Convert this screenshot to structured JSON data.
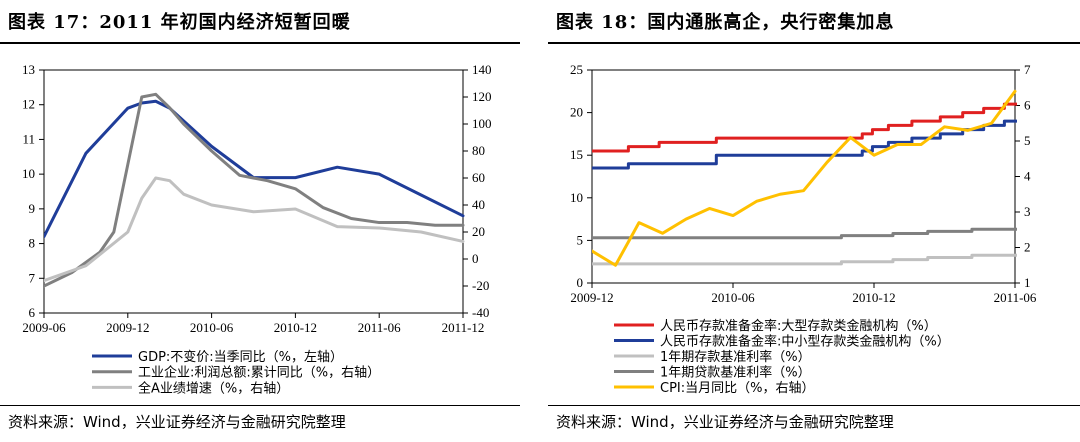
{
  "left": {
    "title": "图表 17：2011 年初国内经济短暂回暖",
    "source": "资料来源：Wind，兴业证券经济与金融研究院整理",
    "chart_data": {
      "type": "line",
      "x_ticks": [
        "2009-06",
        "2009-12",
        "2010-06",
        "2010-12",
        "2011-06",
        "2011-12"
      ],
      "x_range": [
        "2009-06",
        "2011-12"
      ],
      "y_left_range": [
        6,
        13
      ],
      "y_left_ticks": [
        "6",
        "7",
        "8",
        "9",
        "10",
        "11",
        "12",
        "13"
      ],
      "y_right_range": [
        -40,
        140
      ],
      "y_right_ticks": [
        "-40",
        "-20",
        "0",
        "20",
        "40",
        "60",
        "80",
        "100",
        "120",
        "140"
      ],
      "grid": false,
      "legend_position": "bottom",
      "series": [
        {
          "name": "GDP:不变价:当季同比（%，左轴）",
          "axis": "left",
          "color": "#1f3d99",
          "x": [
            "2009-06",
            "2009-09",
            "2009-12",
            "2010-01",
            "2010-02",
            "2010-03",
            "2010-06",
            "2010-09",
            "2010-12",
            "2011-03",
            "2011-06",
            "2011-09",
            "2011-12"
          ],
          "y": [
            8.2,
            10.6,
            11.9,
            12.05,
            12.1,
            11.9,
            10.8,
            9.9,
            9.9,
            10.2,
            10.0,
            9.4,
            8.8
          ]
        },
        {
          "name": "工业企业:利润总额:累计同比（%，右轴）",
          "axis": "right",
          "color": "#808080",
          "x": [
            "2009-06",
            "2009-08",
            "2009-10",
            "2009-11",
            "2009-12",
            "2010-01",
            "2010-02",
            "2010-03",
            "2010-04",
            "2010-06",
            "2010-08",
            "2010-10",
            "2010-12",
            "2011-02",
            "2011-04",
            "2011-06",
            "2011-08",
            "2011-10",
            "2011-12"
          ],
          "y": [
            -20,
            -10,
            5,
            20,
            70,
            120,
            122,
            112,
            100,
            80,
            62,
            58,
            52,
            38,
            30,
            27,
            27,
            25,
            25
          ]
        },
        {
          "name": "全A业绩增速（%，右轴）",
          "axis": "right",
          "color": "#c0c0c0",
          "x": [
            "2009-06",
            "2009-09",
            "2009-12",
            "2010-01",
            "2010-02",
            "2010-03",
            "2010-04",
            "2010-06",
            "2010-09",
            "2010-12",
            "2011-03",
            "2011-06",
            "2011-09",
            "2011-12"
          ],
          "y": [
            -16,
            -5,
            20,
            45,
            60,
            58,
            48,
            40,
            35,
            37,
            24,
            23,
            20,
            13
          ]
        }
      ]
    }
  },
  "right": {
    "title": "图表 18：国内通胀高企，央行密集加息",
    "source": "资料来源：Wind，兴业证券经济与金融研究院整理",
    "chart_data": {
      "type": "line",
      "x_ticks": [
        "2009-12",
        "2010-06",
        "2010-12",
        "2011-06"
      ],
      "x_range": [
        "2009-12",
        "2011-06"
      ],
      "y_left_range": [
        0,
        25
      ],
      "y_left_ticks": [
        "0",
        "5",
        "10",
        "15",
        "20",
        "25"
      ],
      "y_right_range": [
        1,
        7
      ],
      "y_right_ticks": [
        "1",
        "2",
        "3",
        "4",
        "5",
        "6",
        "7"
      ],
      "grid": false,
      "legend_position": "bottom",
      "series": [
        {
          "name": "人民币存款准备金率:大型存款类金融机构（%）",
          "axis": "left",
          "color": "#e02020",
          "step": true,
          "x": [
            "2009-12",
            "2010-01-18",
            "2010-02-25",
            "2010-05-10",
            "2010-11-16",
            "2010-11-29",
            "2010-12-20",
            "2011-01-20",
            "2011-02-24",
            "2011-03-25",
            "2011-04-21",
            "2011-05-18",
            "2011-06-20"
          ],
          "y": [
            15.5,
            16.0,
            16.5,
            17.0,
            17.5,
            18.0,
            18.5,
            19.0,
            19.5,
            20.0,
            20.5,
            21.0,
            21.5
          ]
        },
        {
          "name": "人民币存款准备金率:中小型存款类金融机构（%）",
          "axis": "left",
          "color": "#1f3d99",
          "step": true,
          "x": [
            "2009-12",
            "2010-01-18",
            "2010-05-10",
            "2010-11-16",
            "2010-11-29",
            "2010-12-20",
            "2011-01-20",
            "2011-02-24",
            "2011-03-25",
            "2011-04-21",
            "2011-05-18",
            "2011-06-20"
          ],
          "y": [
            13.5,
            14.0,
            15.0,
            15.5,
            16.0,
            16.5,
            17.0,
            17.5,
            18.0,
            18.5,
            19.0,
            19.5
          ]
        },
        {
          "name": "1年期存款基准利率（%）",
          "axis": "left",
          "color": "#c0c0c0",
          "step": true,
          "x": [
            "2009-12",
            "2010-10-20",
            "2010-12-26",
            "2011-02-09",
            "2011-04-06",
            "2011-06-20"
          ],
          "y": [
            2.25,
            2.5,
            2.75,
            3.0,
            3.25,
            3.25
          ]
        },
        {
          "name": "1年期贷款基准利率（%）",
          "axis": "left",
          "color": "#808080",
          "step": true,
          "x": [
            "2009-12",
            "2010-10-20",
            "2010-12-26",
            "2011-02-09",
            "2011-04-06",
            "2011-06-20"
          ],
          "y": [
            5.31,
            5.56,
            5.81,
            6.06,
            6.31,
            6.31
          ]
        },
        {
          "name": "CPI:当月同比（%，右轴）",
          "axis": "right",
          "color": "#ffc000",
          "step": false,
          "x": [
            "2009-12",
            "2010-01",
            "2010-02",
            "2010-03",
            "2010-04",
            "2010-05",
            "2010-06",
            "2010-07",
            "2010-08",
            "2010-09",
            "2010-10",
            "2010-11",
            "2010-12",
            "2011-01",
            "2011-02",
            "2011-03",
            "2011-04",
            "2011-05",
            "2011-06"
          ],
          "y": [
            1.9,
            1.5,
            2.7,
            2.4,
            2.8,
            3.1,
            2.9,
            3.3,
            3.5,
            3.6,
            4.4,
            5.1,
            4.6,
            4.9,
            4.9,
            5.4,
            5.3,
            5.5,
            6.4
          ]
        }
      ]
    }
  }
}
